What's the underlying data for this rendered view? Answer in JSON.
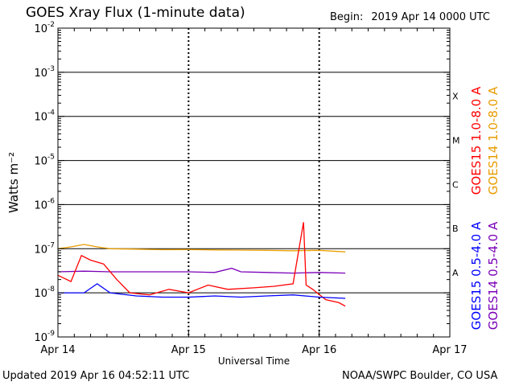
{
  "header": {
    "title": "GOES Xray Flux (1-minute data)",
    "begin_label": "Begin:",
    "begin_value": "2019 Apr 14 0000 UTC"
  },
  "footer": {
    "updated": "Updated 2019 Apr 16 04:52:11 UTC",
    "credit": "NOAA/SWPC Boulder, CO USA"
  },
  "chart_data": {
    "type": "line",
    "ylabel": "Watts m⁻²",
    "xlabel": "Universal Time",
    "yscale": "log",
    "ylim": [
      1e-09,
      0.01
    ],
    "y_ticks": [
      {
        "value": 0.01,
        "label": "10",
        "exp": "-2"
      },
      {
        "value": 0.001,
        "label": "10",
        "exp": "-3"
      },
      {
        "value": 0.0001,
        "label": "10",
        "exp": "-4"
      },
      {
        "value": 1e-05,
        "label": "10",
        "exp": "-5"
      },
      {
        "value": 1e-06,
        "label": "10",
        "exp": "-6"
      },
      {
        "value": 1e-07,
        "label": "10",
        "exp": "-7"
      },
      {
        "value": 1e-08,
        "label": "10",
        "exp": "-8"
      },
      {
        "value": 1e-09,
        "label": "10",
        "exp": "-9"
      }
    ],
    "x_unit": "days since 2019 Apr 14 0000 UTC",
    "xlim": [
      0,
      3
    ],
    "x_ticks": [
      {
        "value": 0,
        "label": "Apr 14"
      },
      {
        "value": 1,
        "label": "Apr 15"
      },
      {
        "value": 2,
        "label": "Apr 16"
      },
      {
        "value": 3,
        "label": "Apr 17"
      }
    ],
    "flare_classes": [
      {
        "label": "X",
        "value": 0.0003
      },
      {
        "label": "M",
        "value": 3e-05
      },
      {
        "label": "C",
        "value": 3e-06
      },
      {
        "label": "B",
        "value": 3e-07
      },
      {
        "label": "A",
        "value": 3e-08
      }
    ],
    "grid": {
      "horizontal_at": [
        0.001,
        0.0001,
        1e-05,
        1e-06,
        1e-07,
        1e-08
      ],
      "vertical_dotted_at": [
        1,
        2
      ]
    },
    "legend_right": [
      {
        "label": "GOES15 1.0-8.0 A",
        "color": "#ff0000"
      },
      {
        "label": "GOES14 1.0-8.0 A",
        "color": "#e89c00"
      }
    ],
    "legend_bottom": [
      {
        "label": "GOES15 0.5-4.0 A",
        "color": "#0000ff"
      },
      {
        "label": "GOES14 0.5-4.0 A",
        "color": "#7a00b8"
      }
    ],
    "series": [
      {
        "name": "GOES14 1.0-8.0 A",
        "color": "#e89c00",
        "x": [
          0,
          0.1,
          0.2,
          0.3,
          0.4,
          0.6,
          0.8,
          1.0,
          1.2,
          1.4,
          1.6,
          1.8,
          2.0,
          2.2
        ],
        "y": [
          1e-07,
          1.1e-07,
          1.25e-07,
          1.1e-07,
          1e-07,
          9.8e-08,
          9.5e-08,
          9.6e-08,
          9.4e-08,
          9.3e-08,
          9.2e-08,
          9e-08,
          9.2e-08,
          8.5e-08
        ]
      },
      {
        "name": "GOES14 0.5-4.0 A",
        "color": "#7a00b8",
        "x": [
          0,
          0.2,
          0.4,
          0.6,
          0.8,
          1.0,
          1.2,
          1.33,
          1.4,
          1.6,
          1.8,
          2.0,
          2.2
        ],
        "y": [
          3e-08,
          3.1e-08,
          3e-08,
          3e-08,
          3e-08,
          3e-08,
          2.9e-08,
          3.6e-08,
          3e-08,
          2.9e-08,
          2.8e-08,
          2.9e-08,
          2.8e-08
        ]
      },
      {
        "name": "GOES15 1.0-8.0 A",
        "color": "#ff0000",
        "x": [
          0,
          0.1,
          0.18,
          0.25,
          0.35,
          0.45,
          0.55,
          0.7,
          0.85,
          1.0,
          1.15,
          1.3,
          1.5,
          1.65,
          1.8,
          1.88,
          1.9,
          1.95,
          2.05,
          2.15,
          2.2
        ],
        "y": [
          2.5e-08,
          1.8e-08,
          7e-08,
          5.5e-08,
          4.5e-08,
          2e-08,
          1e-08,
          9e-09,
          1.2e-08,
          1e-08,
          1.5e-08,
          1.2e-08,
          1.3e-08,
          1.4e-08,
          1.6e-08,
          4e-07,
          1.5e-08,
          1.2e-08,
          7e-09,
          6e-09,
          5e-09
        ]
      },
      {
        "name": "GOES15 0.5-4.0 A",
        "color": "#0000ff",
        "x": [
          0,
          0.2,
          0.3,
          0.4,
          0.6,
          0.8,
          1.0,
          1.2,
          1.4,
          1.6,
          1.8,
          2.0,
          2.2
        ],
        "y": [
          1e-08,
          1e-08,
          1.6e-08,
          1e-08,
          8.5e-09,
          8e-09,
          8e-09,
          8.5e-09,
          8e-09,
          8.5e-09,
          9e-09,
          8e-09,
          7.5e-09
        ]
      }
    ]
  }
}
